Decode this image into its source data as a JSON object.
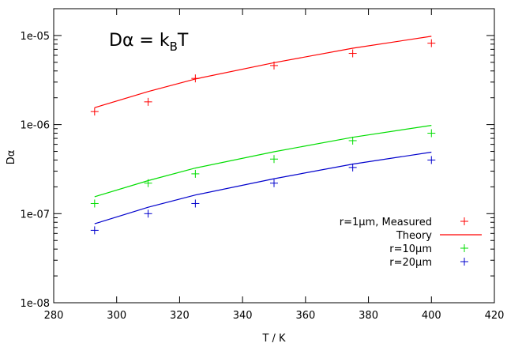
{
  "chart_data": {
    "type": "line",
    "xlabel": "T / K",
    "ylabel": "Dα",
    "xlim": [
      280,
      420
    ],
    "ylim": [
      1e-08,
      2e-05
    ],
    "yscale": "log",
    "xticks": [
      "280",
      "300",
      "320",
      "340",
      "360",
      "380",
      "400",
      "420"
    ],
    "yticks": [
      "1e-08",
      "1e-07",
      "1e-06",
      "1e-05"
    ],
    "annotation": {
      "main": "Dα = k",
      "sub": "B",
      "tail": "T"
    },
    "grid": false,
    "legend_position": "bottom-right",
    "colors": {
      "r1": "#ff0000",
      "r10": "#00dd00",
      "r20": "#0000cc"
    },
    "x": [
      293,
      310,
      325,
      350,
      375,
      400
    ],
    "series": [
      {
        "name": "r=1μm, Measured",
        "kind": "points",
        "color": "#ff0000",
        "values": [
          1.4e-06,
          1.8e-06,
          3.3e-06,
          4.6e-06,
          6.3e-06,
          8.2e-06
        ]
      },
      {
        "name": "Theory",
        "kind": "line",
        "color": "#ff0000",
        "values": [
          1.55e-06,
          2.35e-06,
          3.25e-06,
          4.95e-06,
          7.2e-06,
          9.8e-06
        ]
      },
      {
        "name": "r=10μm",
        "kind": "points",
        "color": "#00dd00",
        "values": [
          1.3e-07,
          2.2e-07,
          2.8e-07,
          4.1e-07,
          6.6e-07,
          8e-07
        ]
      },
      {
        "name": "",
        "kind": "line",
        "color": "#00dd00",
        "values": [
          1.55e-07,
          2.35e-07,
          3.25e-07,
          4.95e-07,
          7.2e-07,
          9.8e-07
        ]
      },
      {
        "name": "r=20μm",
        "kind": "points",
        "color": "#0000cc",
        "values": [
          6.5e-08,
          1e-07,
          1.3e-07,
          2.2e-07,
          3.3e-07,
          4e-07
        ]
      },
      {
        "name": "",
        "kind": "line",
        "color": "#0000cc",
        "values": [
          7.7e-08,
          1.18e-07,
          1.62e-07,
          2.47e-07,
          3.6e-07,
          4.9e-07
        ]
      }
    ]
  }
}
